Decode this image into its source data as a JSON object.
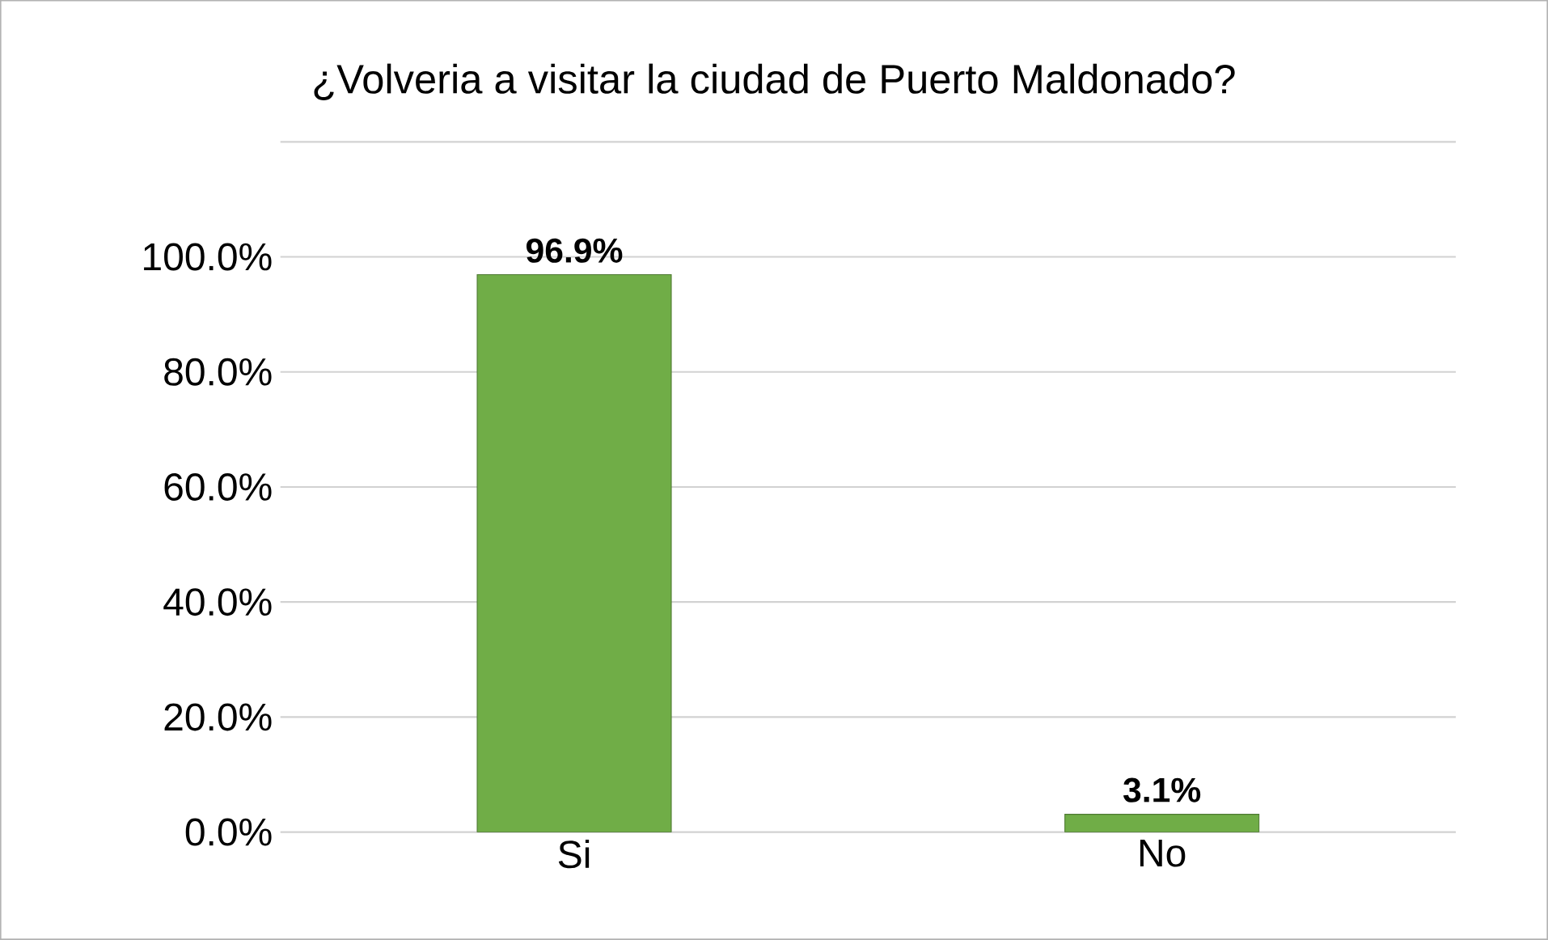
{
  "chart_data": {
    "type": "bar",
    "title": "¿Volveria a visitar la ciudad de Puerto Maldonado?",
    "categories": [
      "Si",
      "No"
    ],
    "values": [
      96.9,
      3.1
    ],
    "value_labels": [
      "96.9%",
      "3.1%"
    ],
    "color": "#70ad47",
    "ylim": [
      0,
      120
    ],
    "yticks": [
      {
        "value": 0,
        "label": "0.0%"
      },
      {
        "value": 20,
        "label": "20.0%"
      },
      {
        "value": 40,
        "label": "40.0%"
      },
      {
        "value": 60,
        "label": "60.0%"
      },
      {
        "value": 80,
        "label": "80.0%"
      },
      {
        "value": 100,
        "label": "100.0%"
      },
      {
        "value": 120,
        "label": null
      }
    ],
    "grid": "y"
  }
}
